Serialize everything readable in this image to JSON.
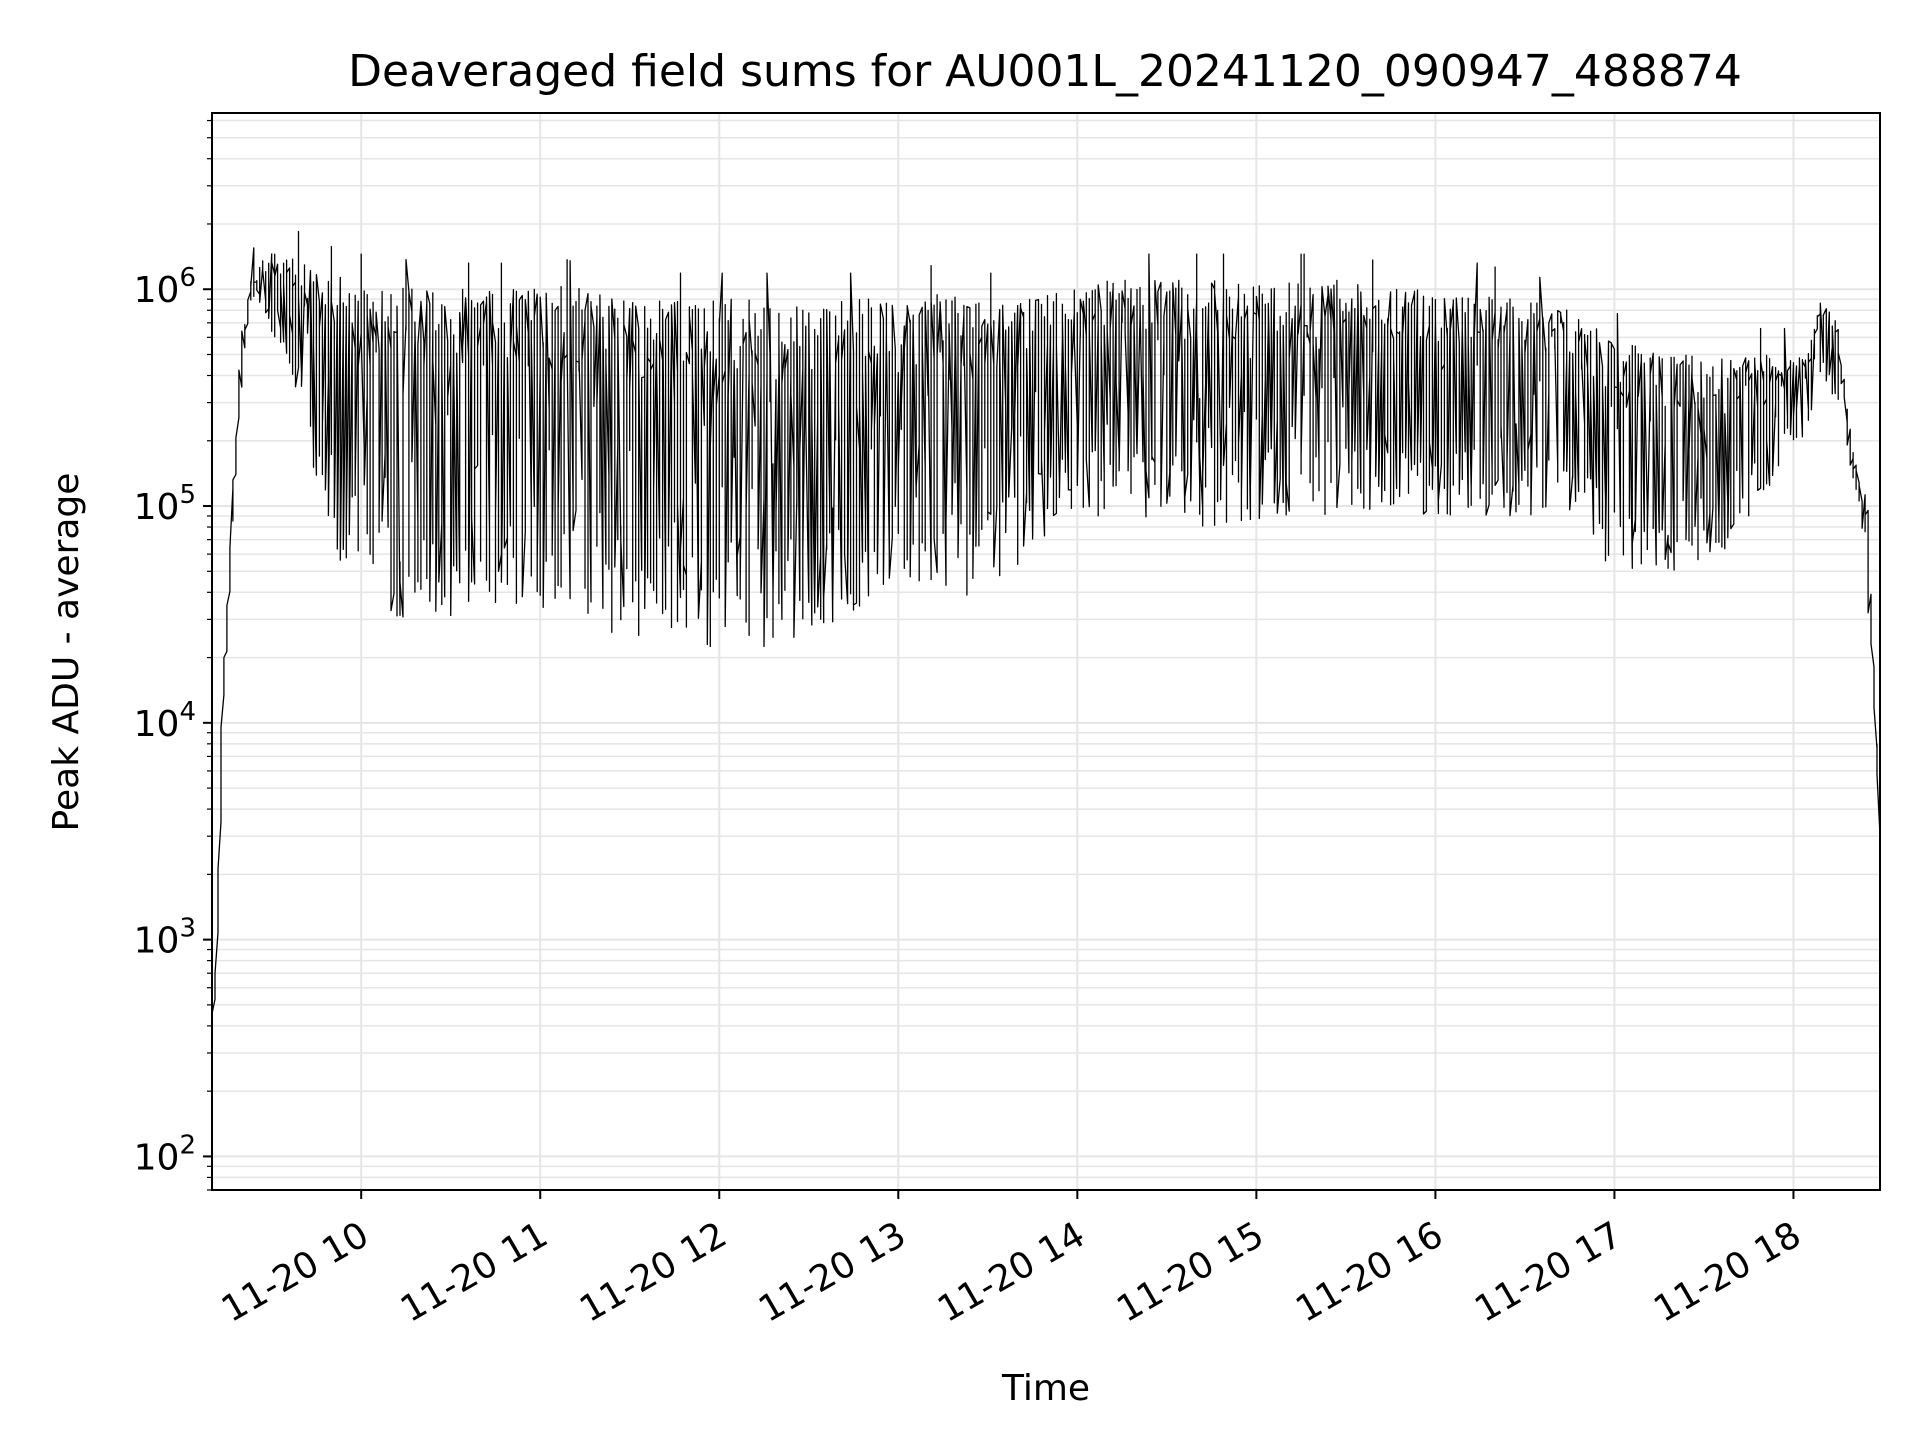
{
  "chart_data": {
    "type": "line",
    "title": "Deaveraged field sums for AU001L_20241120_090947_488874",
    "xlabel": "Time",
    "ylabel": "Peak ADU - average",
    "yscale": "log",
    "ylim": [
      70,
      6500000
    ],
    "xlim": [
      "2024-11-20 09:10",
      "2024-11-20 18:29"
    ],
    "grid": true,
    "line_color": "#000000",
    "grid_color": "#e5e5e5",
    "x_ticks": [
      {
        "value": "2024-11-20 10:00",
        "label": "11-20 10"
      },
      {
        "value": "2024-11-20 11:00",
        "label": "11-20 11"
      },
      {
        "value": "2024-11-20 12:00",
        "label": "11-20 12"
      },
      {
        "value": "2024-11-20 13:00",
        "label": "11-20 13"
      },
      {
        "value": "2024-11-20 14:00",
        "label": "11-20 14"
      },
      {
        "value": "2024-11-20 15:00",
        "label": "11-20 15"
      },
      {
        "value": "2024-11-20 16:00",
        "label": "11-20 16"
      },
      {
        "value": "2024-11-20 17:00",
        "label": "11-20 17"
      },
      {
        "value": "2024-11-20 18:00",
        "label": "11-20 18"
      }
    ],
    "y_ticks": [
      {
        "value": 100,
        "base": "10",
        "exp": "2"
      },
      {
        "value": 1000,
        "base": "10",
        "exp": "3"
      },
      {
        "value": 10000,
        "base": "10",
        "exp": "4"
      },
      {
        "value": 100000,
        "base": "10",
        "exp": "5"
      },
      {
        "value": 1000000,
        "base": "10",
        "exp": "6"
      }
    ],
    "series": [
      {
        "x": [
          "2024-11-20 09:10",
          "2024-11-20 09:12",
          "2024-11-20 09:14",
          "2024-11-20 09:17",
          "2024-11-20 09:20",
          "2024-11-20 09:23",
          "2024-11-20 09:26",
          "2024-11-20 09:30",
          "2024-11-20 09:35",
          "2024-11-20 09:40",
          "2024-11-20 09:45",
          "2024-11-20 09:50",
          "2024-11-20 09:55",
          "2024-11-20 10:00",
          "2024-11-20 10:10",
          "2024-11-20 10:20",
          "2024-11-20 10:30",
          "2024-11-20 10:40",
          "2024-11-20 10:50",
          "2024-11-20 11:00",
          "2024-11-20 11:15",
          "2024-11-20 11:30",
          "2024-11-20 11:45",
          "2024-11-20 12:00",
          "2024-11-20 12:15",
          "2024-11-20 12:30",
          "2024-11-20 12:45",
          "2024-11-20 13:00",
          "2024-11-20 13:15",
          "2024-11-20 13:30",
          "2024-11-20 13:45",
          "2024-11-20 14:00",
          "2024-11-20 14:15",
          "2024-11-20 14:30",
          "2024-11-20 14:45",
          "2024-11-20 15:00",
          "2024-11-20 15:15",
          "2024-11-20 15:30",
          "2024-11-20 15:45",
          "2024-11-20 16:00",
          "2024-11-20 16:15",
          "2024-11-20 16:30",
          "2024-11-20 16:45",
          "2024-11-20 17:00",
          "2024-11-20 17:15",
          "2024-11-20 17:30",
          "2024-11-20 17:45",
          "2024-11-20 18:00",
          "2024-11-20 18:05",
          "2024-11-20 18:10",
          "2024-11-20 18:15",
          "2024-11-20 18:20",
          "2024-11-20 18:25",
          "2024-11-20 18:29"
        ],
        "hi": [
          250,
          1000,
          12000,
          80000,
          500000,
          1100000,
          1300000,
          1500000,
          1400000,
          1400000,
          1200000,
          1200000,
          1100000,
          1100000,
          1100000,
          1000000,
          1000000,
          1000000,
          1000000,
          1100000,
          1000000,
          900000,
          900000,
          900000,
          900000,
          900000,
          900000,
          900000,
          1000000,
          900000,
          900000,
          1100000,
          1100000,
          1100000,
          1100000,
          1100000,
          1100000,
          1100000,
          1000000,
          1000000,
          1000000,
          900000,
          800000,
          600000,
          500000,
          500000,
          500000,
          500000,
          500000,
          900000,
          700000,
          200000,
          100000,
          5000
        ],
        "lo": [
          250,
          700,
          9000,
          60000,
          350000,
          900000,
          800000,
          600000,
          400000,
          250000,
          120000,
          80000,
          50000,
          40000,
          30000,
          30000,
          30000,
          35000,
          35000,
          30000,
          28000,
          25000,
          25000,
          22000,
          22000,
          25000,
          30000,
          50000,
          40000,
          35000,
          60000,
          90000,
          90000,
          80000,
          80000,
          80000,
          90000,
          90000,
          90000,
          90000,
          90000,
          90000,
          90000,
          50000,
          50000,
          50000,
          80000,
          200000,
          200000,
          400000,
          300000,
          150000,
          60000,
          3000
        ]
      }
    ]
  }
}
